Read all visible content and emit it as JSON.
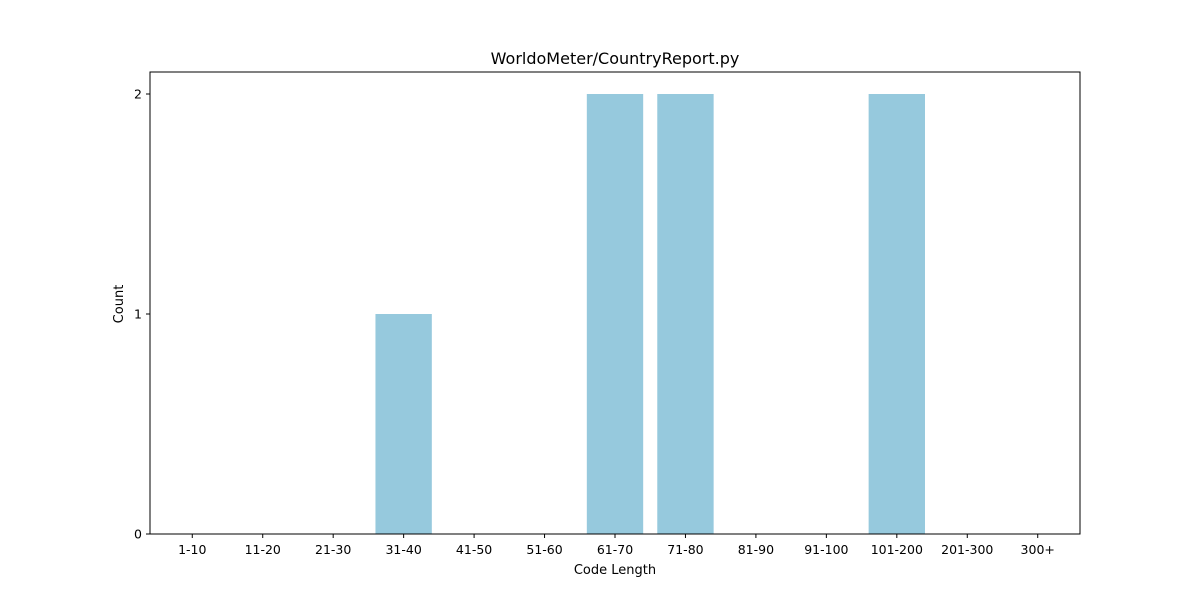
{
  "chart_data": {
    "type": "bar",
    "title": "WorldoMeter/CountryReport.py",
    "xlabel": "Code Length",
    "ylabel": "Count",
    "categories": [
      "1-10",
      "11-20",
      "21-30",
      "31-40",
      "41-50",
      "51-60",
      "61-70",
      "71-80",
      "81-90",
      "91-100",
      "101-200",
      "201-300",
      "300+"
    ],
    "values": [
      0,
      0,
      0,
      1,
      0,
      0,
      2,
      2,
      0,
      0,
      2,
      0,
      0
    ],
    "yticks": [
      0,
      1,
      2
    ],
    "ylim": [
      0,
      2.1
    ],
    "grid": false,
    "bar_color": "#96c9dd"
  }
}
